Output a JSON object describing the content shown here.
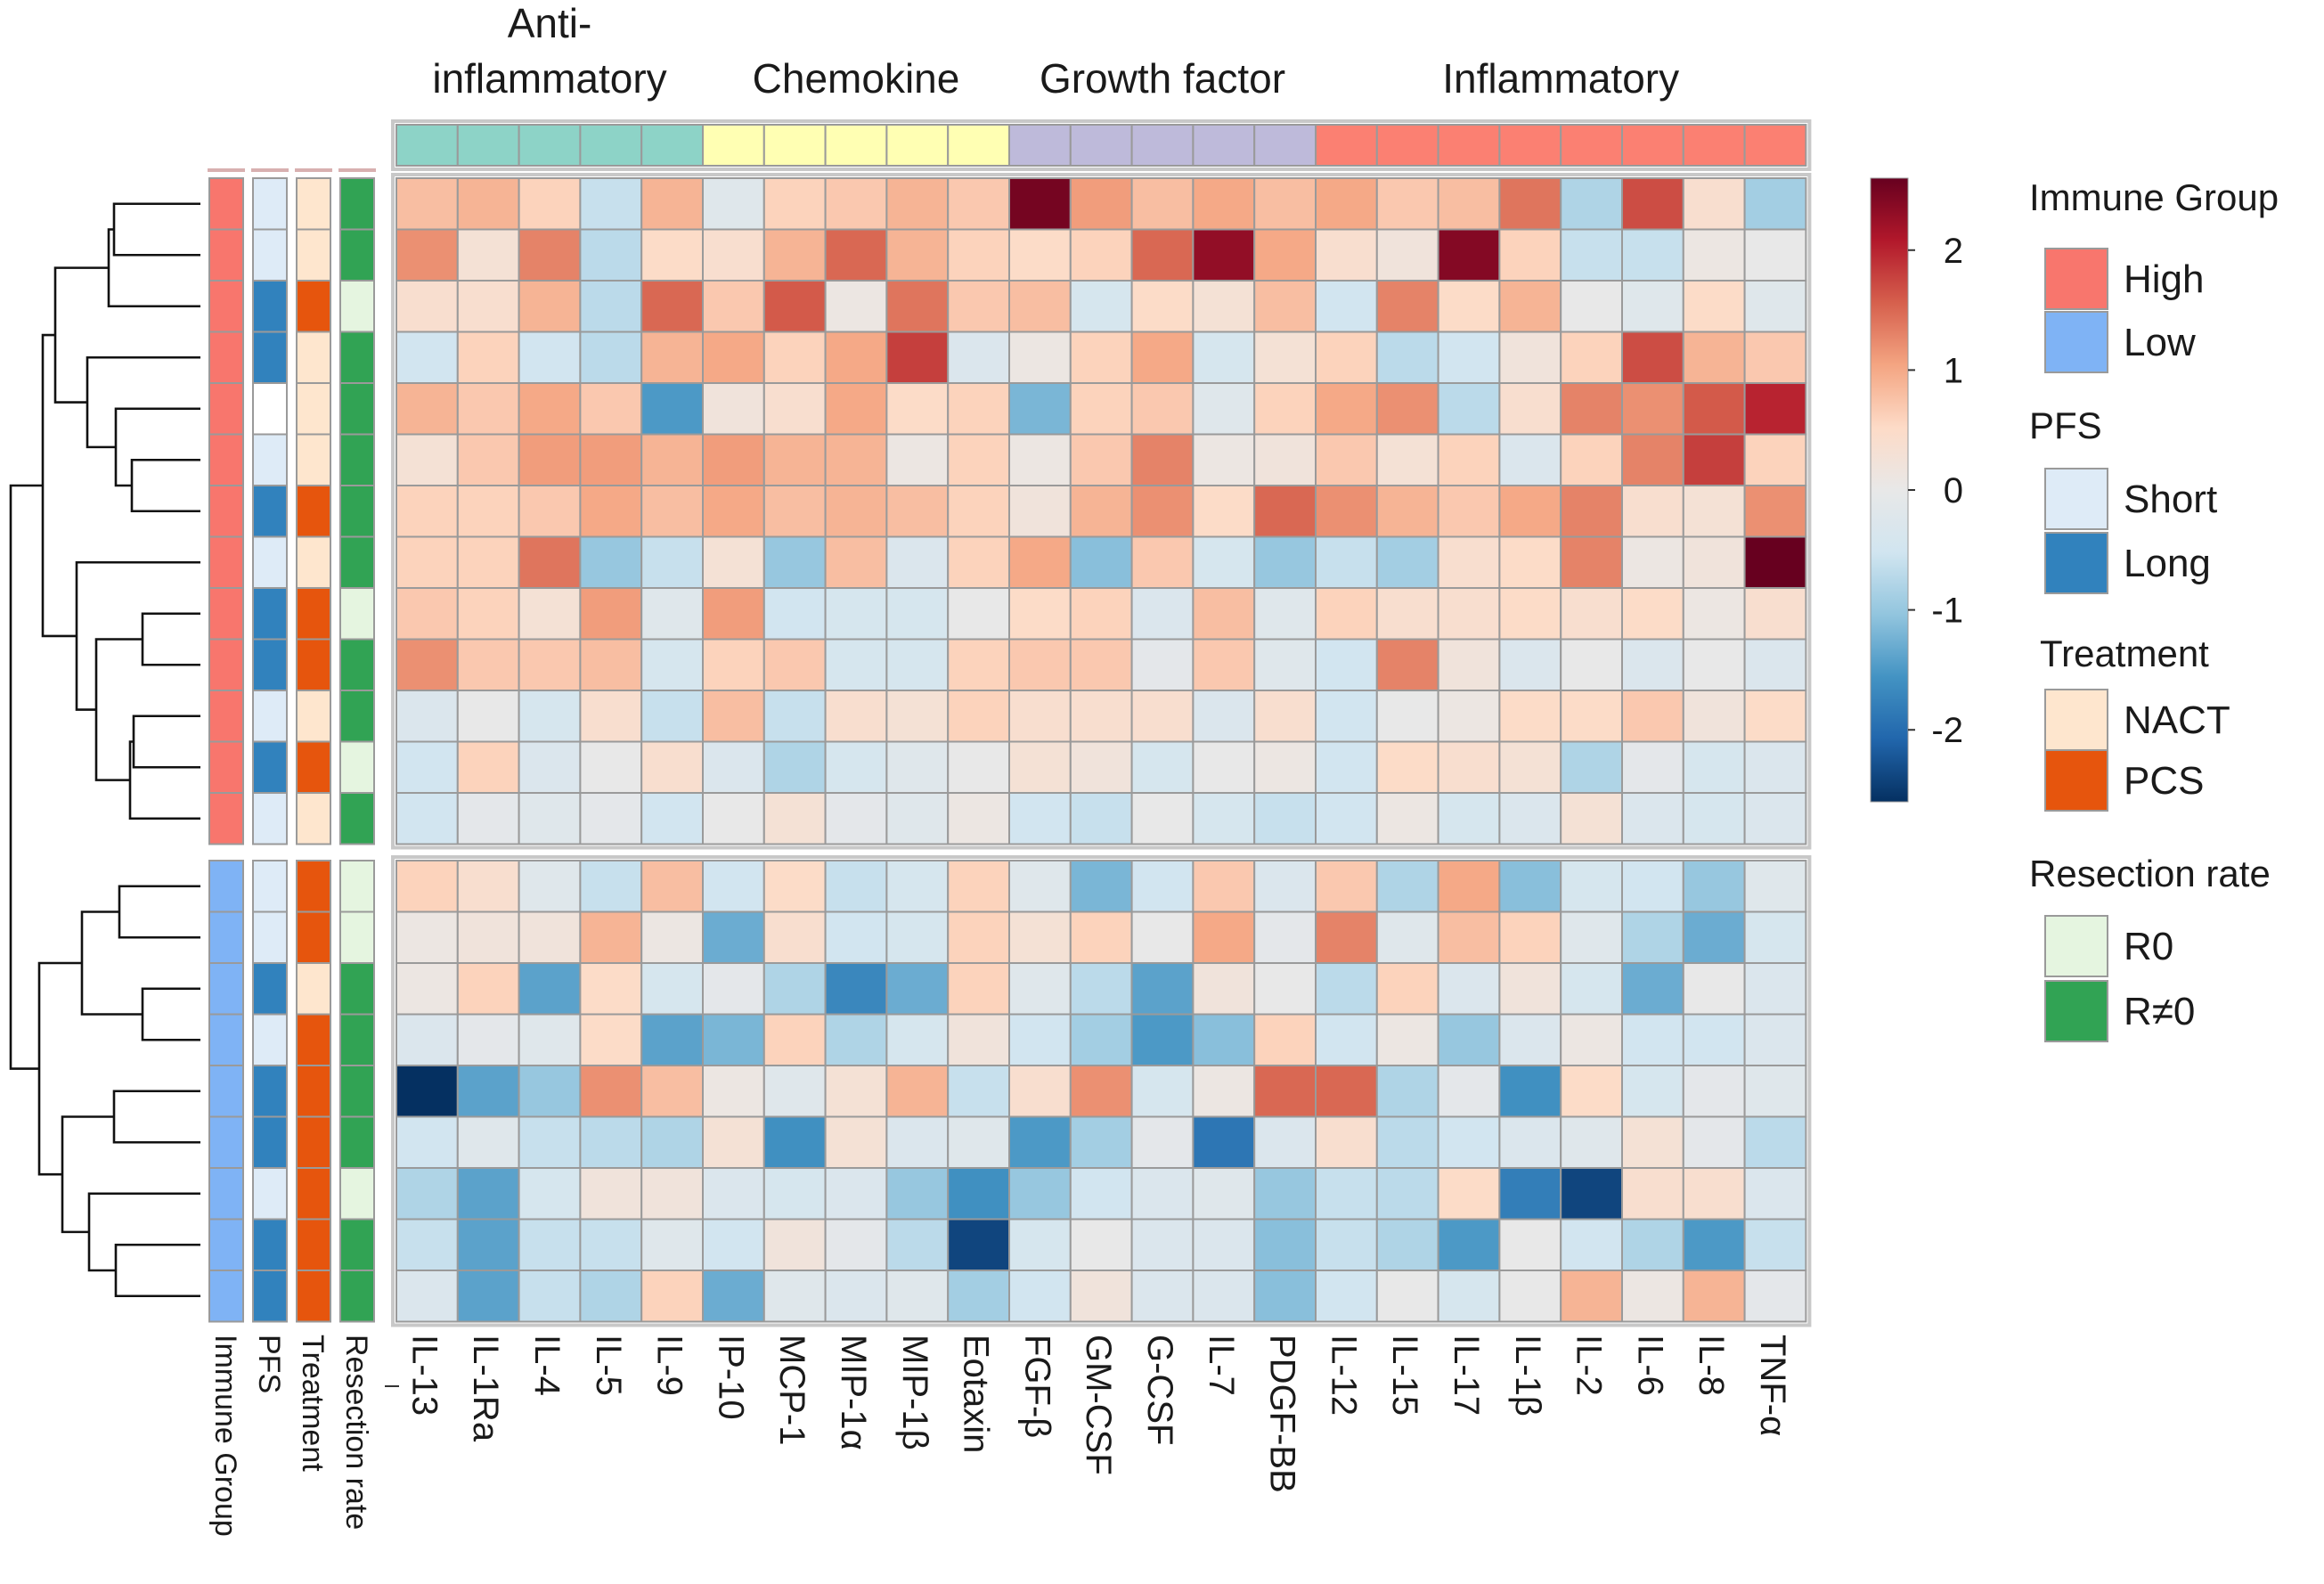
{
  "chart_data": {
    "type": "heatmap",
    "title": "",
    "colorbar": {
      "min": -2.6,
      "max": 2.6,
      "ticks": [
        2,
        1,
        0,
        -1,
        -2
      ],
      "tick_labels": [
        "2",
        "1",
        "0",
        "-1",
        "-2"
      ],
      "colors": [
        "#053061",
        "#2166ac",
        "#4393c3",
        "#92c5de",
        "#d1e5f0",
        "#e8e8e8",
        "#fddbc7",
        "#f4a582",
        "#d6604d",
        "#b2182b",
        "#67001f"
      ]
    },
    "column_groups": [
      {
        "label_lines": [
          "Anti-",
          "inflammatory"
        ],
        "span": [
          0,
          4
        ],
        "color": "#8dd3c7"
      },
      {
        "label_lines": [
          "Chemokine"
        ],
        "span": [
          5,
          9
        ],
        "color": "#ffffb3"
      },
      {
        "label_lines": [
          "Growth factor"
        ],
        "span": [
          10,
          14
        ],
        "color": "#bebada"
      },
      {
        "label_lines": [
          "Inflammatory"
        ],
        "span": [
          15,
          22
        ],
        "color": "#fb8072"
      }
    ],
    "columns": [
      "IL-13",
      "IL-1Ra",
      "IL-4",
      "IL-5",
      "IL-9",
      "IP-10",
      "MCP-1",
      "MIP-1α",
      "MIP-1β",
      "Eotaxin",
      "FGF-β",
      "GM-CSF",
      "G-CSF",
      "IL-7",
      "PDGF-BB",
      "IL-12",
      "IL-15",
      "IL-17",
      "IL-1β",
      "IL-2",
      "IL-6",
      "IL-8",
      "TNF-α"
    ],
    "row_annotation_headers": [
      "Immune Group",
      "PFS",
      "Treatment",
      "Resection rate"
    ],
    "annotation_colors": {
      "High": "#f8766d",
      "Low": "#7fb3f5",
      "Short": "#deebf7",
      "Long": "#3182bd",
      "NACT": "#fee6ce",
      "PCS": "#e6550d",
      "R0": "#e5f5e0",
      "R≠0": "#31a354",
      "Blank": "#ffffff"
    },
    "legend": [
      {
        "title": "Immune Group",
        "items": [
          "High",
          "Low"
        ]
      },
      {
        "title": "PFS",
        "items": [
          "Short",
          "Long"
        ]
      },
      {
        "title": "Treatment",
        "items": [
          "NACT",
          "PCS"
        ]
      },
      {
        "title": "Resection rate",
        "items": [
          "R0",
          "R≠0"
        ]
      }
    ],
    "row_blocks": [
      {
        "name": "High",
        "rows": [
          {
            "immune": "High",
            "pfs": "Short",
            "treatment": "NACT",
            "resection": "R≠0",
            "values": [
              0.8,
              0.9,
              0.6,
              -0.6,
              0.9,
              -0.2,
              0.6,
              0.7,
              0.9,
              0.7,
              2.5,
              1.1,
              0.8,
              1.0,
              0.8,
              1.0,
              0.7,
              0.8,
              1.4,
              -0.8,
              1.7,
              0.4,
              -0.9
            ]
          },
          {
            "immune": "High",
            "pfs": "Short",
            "treatment": "NACT",
            "resection": "R≠0",
            "values": [
              1.2,
              0.3,
              1.3,
              -0.7,
              0.5,
              0.4,
              0.9,
              1.5,
              0.9,
              0.6,
              0.5,
              0.6,
              1.5,
              2.3,
              1.0,
              0.4,
              0.2,
              2.4,
              0.6,
              -0.6,
              -0.6,
              0.1,
              0.0
            ]
          },
          {
            "immune": "High",
            "pfs": "Long",
            "treatment": "PCS",
            "resection": "R0",
            "values": [
              0.4,
              0.4,
              0.9,
              -0.7,
              1.5,
              0.7,
              1.6,
              0.1,
              1.4,
              0.7,
              0.8,
              -0.4,
              0.5,
              0.3,
              0.8,
              -0.5,
              1.3,
              0.5,
              0.9,
              0.0,
              -0.2,
              0.5,
              -0.2
            ]
          },
          {
            "immune": "High",
            "pfs": "Long",
            "treatment": "NACT",
            "resection": "R≠0",
            "values": [
              -0.5,
              0.6,
              -0.5,
              -0.7,
              0.9,
              1.0,
              0.6,
              1.0,
              1.8,
              -0.3,
              0.1,
              0.6,
              1.0,
              -0.4,
              0.3,
              0.6,
              -0.7,
              -0.5,
              0.2,
              0.6,
              1.7,
              0.9,
              0.7
            ]
          },
          {
            "immune": "High",
            "pfs": "Blank",
            "treatment": "NACT",
            "resection": "R≠0",
            "values": [
              0.9,
              0.7,
              1.0,
              0.7,
              -1.5,
              0.2,
              0.4,
              1.0,
              0.5,
              0.6,
              -1.2,
              0.6,
              0.7,
              -0.2,
              0.6,
              1.0,
              1.2,
              -0.7,
              0.4,
              1.3,
              1.2,
              1.6,
              2.0
            ]
          },
          {
            "immune": "High",
            "pfs": "Short",
            "treatment": "NACT",
            "resection": "R≠0",
            "values": [
              0.3,
              0.7,
              1.1,
              1.1,
              0.9,
              1.1,
              0.9,
              0.9,
              0.1,
              0.6,
              0.1,
              0.7,
              1.3,
              0.1,
              0.2,
              0.7,
              0.3,
              0.6,
              -0.3,
              0.6,
              1.3,
              1.8,
              0.6
            ]
          },
          {
            "immune": "High",
            "pfs": "Long",
            "treatment": "PCS",
            "resection": "R≠0",
            "values": [
              0.6,
              0.6,
              0.7,
              1.0,
              0.8,
              1.0,
              0.8,
              0.9,
              0.8,
              0.6,
              0.2,
              0.9,
              1.2,
              0.5,
              1.5,
              1.2,
              0.9,
              0.7,
              1.0,
              1.3,
              0.4,
              0.3,
              1.2
            ]
          },
          {
            "immune": "High",
            "pfs": "Short",
            "treatment": "NACT",
            "resection": "R≠0",
            "values": [
              0.6,
              0.6,
              1.4,
              -1.0,
              -0.6,
              0.3,
              -1.0,
              0.8,
              -0.3,
              0.6,
              1.0,
              -1.1,
              0.7,
              -0.4,
              -1.0,
              -0.6,
              -0.9,
              0.4,
              0.5,
              1.3,
              0.1,
              0.2,
              2.6
            ]
          },
          {
            "immune": "High",
            "pfs": "Long",
            "treatment": "PCS",
            "resection": "R0",
            "values": [
              0.7,
              0.6,
              0.3,
              1.1,
              -0.2,
              1.1,
              -0.5,
              -0.4,
              -0.4,
              0.0,
              0.5,
              0.6,
              -0.3,
              0.8,
              -0.2,
              0.6,
              0.4,
              0.4,
              0.5,
              0.4,
              0.5,
              0.1,
              0.4
            ]
          },
          {
            "immune": "High",
            "pfs": "Long",
            "treatment": "PCS",
            "resection": "R≠0",
            "values": [
              1.2,
              0.7,
              0.7,
              0.8,
              -0.4,
              0.6,
              0.7,
              -0.4,
              -0.4,
              0.6,
              0.7,
              0.7,
              -0.1,
              0.7,
              -0.2,
              -0.5,
              1.3,
              0.2,
              -0.3,
              0.0,
              -0.3,
              0.0,
              -0.3
            ]
          },
          {
            "immune": "High",
            "pfs": "Short",
            "treatment": "NACT",
            "resection": "R≠0",
            "values": [
              -0.3,
              0.0,
              -0.4,
              0.4,
              -0.6,
              0.8,
              -0.6,
              0.4,
              0.3,
              0.6,
              0.4,
              0.4,
              0.4,
              -0.3,
              0.4,
              -0.5,
              0.0,
              0.1,
              0.5,
              0.5,
              0.7,
              0.2,
              0.5
            ]
          },
          {
            "immune": "High",
            "pfs": "Long",
            "treatment": "PCS",
            "resection": "R0",
            "values": [
              -0.5,
              0.6,
              -0.3,
              0.0,
              0.4,
              -0.3,
              -0.8,
              -0.4,
              -0.2,
              0.0,
              0.3,
              0.2,
              -0.4,
              0.0,
              0.1,
              -0.5,
              0.5,
              0.4,
              0.3,
              -0.8,
              -0.1,
              -0.4,
              -0.3
            ]
          },
          {
            "immune": "High",
            "pfs": "Short",
            "treatment": "NACT",
            "resection": "R≠0",
            "values": [
              -0.5,
              -0.1,
              -0.2,
              -0.1,
              -0.5,
              0.0,
              0.3,
              -0.1,
              -0.2,
              0.1,
              -0.5,
              -0.6,
              0.0,
              -0.4,
              -0.6,
              -0.5,
              0.1,
              -0.4,
              -0.3,
              0.3,
              -0.3,
              -0.4,
              -0.3
            ]
          }
        ]
      },
      {
        "name": "Low",
        "rows": [
          {
            "immune": "Low",
            "pfs": "Short",
            "treatment": "PCS",
            "resection": "R0",
            "values": [
              0.6,
              0.4,
              -0.2,
              -0.6,
              0.8,
              -0.5,
              0.5,
              -0.6,
              -0.4,
              0.6,
              -0.2,
              -1.2,
              -0.5,
              0.7,
              -0.3,
              0.7,
              -0.8,
              1.0,
              -1.1,
              -0.4,
              -0.5,
              -1.0,
              -0.2
            ]
          },
          {
            "immune": "Low",
            "pfs": "Short",
            "treatment": "PCS",
            "resection": "R0",
            "values": [
              0.1,
              0.2,
              0.2,
              0.9,
              0.1,
              -1.3,
              0.4,
              -0.5,
              -0.4,
              0.6,
              0.3,
              0.6,
              0.0,
              1.0,
              -0.1,
              1.3,
              -0.2,
              0.8,
              0.6,
              -0.2,
              -0.8,
              -1.3,
              -0.4
            ]
          },
          {
            "immune": "Low",
            "pfs": "Long",
            "treatment": "NACT",
            "resection": "R≠0",
            "values": [
              0.1,
              0.6,
              -1.4,
              0.5,
              -0.4,
              -0.1,
              -0.8,
              -1.7,
              -1.3,
              0.6,
              -0.2,
              -0.7,
              -1.4,
              0.2,
              0.0,
              -0.7,
              0.6,
              -0.3,
              0.2,
              -0.4,
              -1.3,
              0.0,
              -0.3
            ]
          },
          {
            "immune": "Low",
            "pfs": "Short",
            "treatment": "PCS",
            "resection": "R≠0",
            "values": [
              -0.3,
              -0.1,
              -0.2,
              0.5,
              -1.4,
              -1.2,
              0.6,
              -0.8,
              -0.4,
              0.2,
              -0.5,
              -0.9,
              -1.5,
              -1.1,
              0.6,
              -0.5,
              0.1,
              -1.0,
              -0.3,
              0.1,
              -0.5,
              -0.5,
              -0.3
            ]
          },
          {
            "immune": "Low",
            "pfs": "Long",
            "treatment": "PCS",
            "resection": "R≠0",
            "values": [
              -2.6,
              -1.4,
              -1.0,
              1.2,
              0.8,
              0.1,
              -0.2,
              0.3,
              0.9,
              -0.6,
              0.4,
              1.2,
              -0.4,
              0.1,
              1.5,
              1.5,
              -0.8,
              -0.1,
              -1.6,
              0.5,
              -0.4,
              -0.1,
              -0.2
            ]
          },
          {
            "immune": "Low",
            "pfs": "Long",
            "treatment": "PCS",
            "resection": "R≠0",
            "values": [
              -0.5,
              -0.2,
              -0.6,
              -0.7,
              -0.8,
              0.3,
              -1.6,
              0.3,
              -0.3,
              -0.2,
              -1.5,
              -0.9,
              -0.1,
              -1.9,
              -0.3,
              0.4,
              -0.7,
              -0.5,
              -0.3,
              -0.2,
              0.3,
              -0.1,
              -0.7
            ]
          },
          {
            "immune": "Low",
            "pfs": "Short",
            "treatment": "PCS",
            "resection": "R0",
            "values": [
              -0.8,
              -1.4,
              -0.4,
              0.2,
              0.2,
              -0.3,
              -0.4,
              -0.3,
              -1.0,
              -1.6,
              -1.0,
              -0.5,
              -0.3,
              -0.2,
              -1.0,
              -0.6,
              -0.7,
              0.5,
              -1.8,
              -2.4,
              0.4,
              0.4,
              -0.3
            ]
          },
          {
            "immune": "Low",
            "pfs": "Long",
            "treatment": "PCS",
            "resection": "R≠0",
            "values": [
              -0.6,
              -1.4,
              -0.6,
              -0.6,
              -0.2,
              -0.5,
              0.2,
              -0.1,
              -0.7,
              -2.4,
              -0.4,
              0.0,
              -0.3,
              -0.3,
              -1.1,
              -0.6,
              -0.8,
              -1.5,
              0.0,
              -0.5,
              -0.8,
              -1.5,
              -0.6
            ]
          },
          {
            "immune": "Low",
            "pfs": "Long",
            "treatment": "PCS",
            "resection": "R≠0",
            "values": [
              -0.3,
              -1.4,
              -0.6,
              -0.8,
              0.6,
              -1.3,
              -0.2,
              -0.3,
              -0.2,
              -0.9,
              -0.5,
              0.2,
              -0.3,
              -0.3,
              -1.1,
              -0.5,
              0.0,
              -0.4,
              0.0,
              0.9,
              0.1,
              0.9,
              -0.1
            ]
          }
        ]
      }
    ]
  }
}
